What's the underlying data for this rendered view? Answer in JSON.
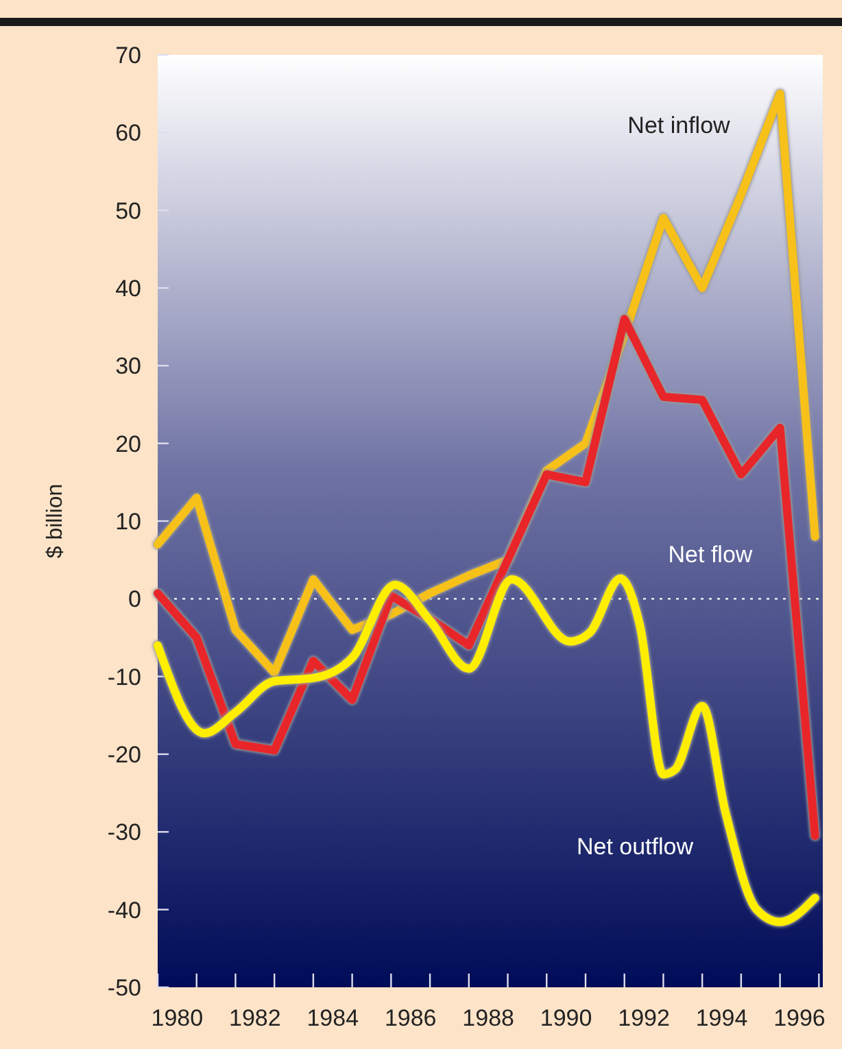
{
  "chart_data": {
    "type": "line",
    "ylabel": "$ billion",
    "x": [
      1980,
      1981,
      1982,
      1983,
      1984,
      1985,
      1986,
      1987,
      1988,
      1989,
      1990,
      1991,
      1992,
      1993,
      1994,
      1995,
      1996,
      1996.9
    ],
    "series": [
      {
        "name": "Net inflow",
        "color": "#f7c11a",
        "values": [
          7,
          13,
          -4,
          -9.5,
          2.5,
          -4,
          -2,
          0.7,
          3,
          5,
          16.5,
          20,
          34,
          49,
          40,
          52,
          65,
          8
        ]
      },
      {
        "name": "Net flow",
        "color": "#e8262a",
        "values": [
          0.7,
          -5,
          -18.7,
          -19.5,
          -8,
          -13,
          0.4,
          -2.6,
          -6,
          5,
          16,
          15,
          36,
          26,
          25.6,
          16,
          22,
          -30.5
        ]
      },
      {
        "name": "Net outflow",
        "color": "#ffee00",
        "x": [
          1980,
          1981.2,
          1982,
          1983,
          1984,
          1985,
          1986.1,
          1987,
          1988,
          1989.1,
          1990.6,
          1991.1,
          1991.9,
          1992.4,
          1993,
          1993.3,
          1994,
          1994.6,
          1995.4,
          1996,
          1996.9
        ],
        "values": [
          -6,
          -17.3,
          -14.6,
          -10.6,
          -10.2,
          -7.6,
          1.8,
          -2.8,
          -9,
          2.5,
          -5.5,
          -4.4,
          2.6,
          -3.5,
          -22.6,
          -22,
          -13.8,
          -27.5,
          -40,
          -41.6,
          -38.5
        ]
      }
    ],
    "xlim": [
      1980,
      1997.1
    ],
    "xticks": [
      {
        "value": 1980,
        "label": null
      },
      {
        "value": 1980.5,
        "label": "1980"
      },
      {
        "value": 1981,
        "label": null
      },
      {
        "value": 1982,
        "label": null
      },
      {
        "value": 1982.5,
        "label": "1982"
      },
      {
        "value": 1983,
        "label": null
      },
      {
        "value": 1984,
        "label": null
      },
      {
        "value": 1984.5,
        "label": "1984"
      },
      {
        "value": 1985,
        "label": null
      },
      {
        "value": 1986,
        "label": null
      },
      {
        "value": 1986.5,
        "label": "1986"
      },
      {
        "value": 1987,
        "label": null
      },
      {
        "value": 1988,
        "label": null
      },
      {
        "value": 1988.5,
        "label": "1988"
      },
      {
        "value": 1989,
        "label": null
      },
      {
        "value": 1990,
        "label": null
      },
      {
        "value": 1990.5,
        "label": "1990"
      },
      {
        "value": 1991,
        "label": null
      },
      {
        "value": 1992,
        "label": null
      },
      {
        "value": 1992.5,
        "label": "1992"
      },
      {
        "value": 1993,
        "label": null
      },
      {
        "value": 1994,
        "label": null
      },
      {
        "value": 1994.5,
        "label": "1994"
      },
      {
        "value": 1995,
        "label": null
      },
      {
        "value": 1996,
        "label": null
      },
      {
        "value": 1996.5,
        "label": "1996"
      },
      {
        "value": 1997,
        "label": null
      }
    ],
    "ylim": [
      -50,
      70
    ],
    "yticks": [
      -50,
      -40,
      -30,
      -20,
      -10,
      0,
      10,
      20,
      30,
      40,
      50,
      60,
      70
    ],
    "ref_lines": [
      {
        "axis": "y",
        "value": 0,
        "color": "#ffffff",
        "line_style": "dotted"
      }
    ],
    "grid": false,
    "legend": false,
    "marker": "none",
    "line_style": "solid"
  }
}
